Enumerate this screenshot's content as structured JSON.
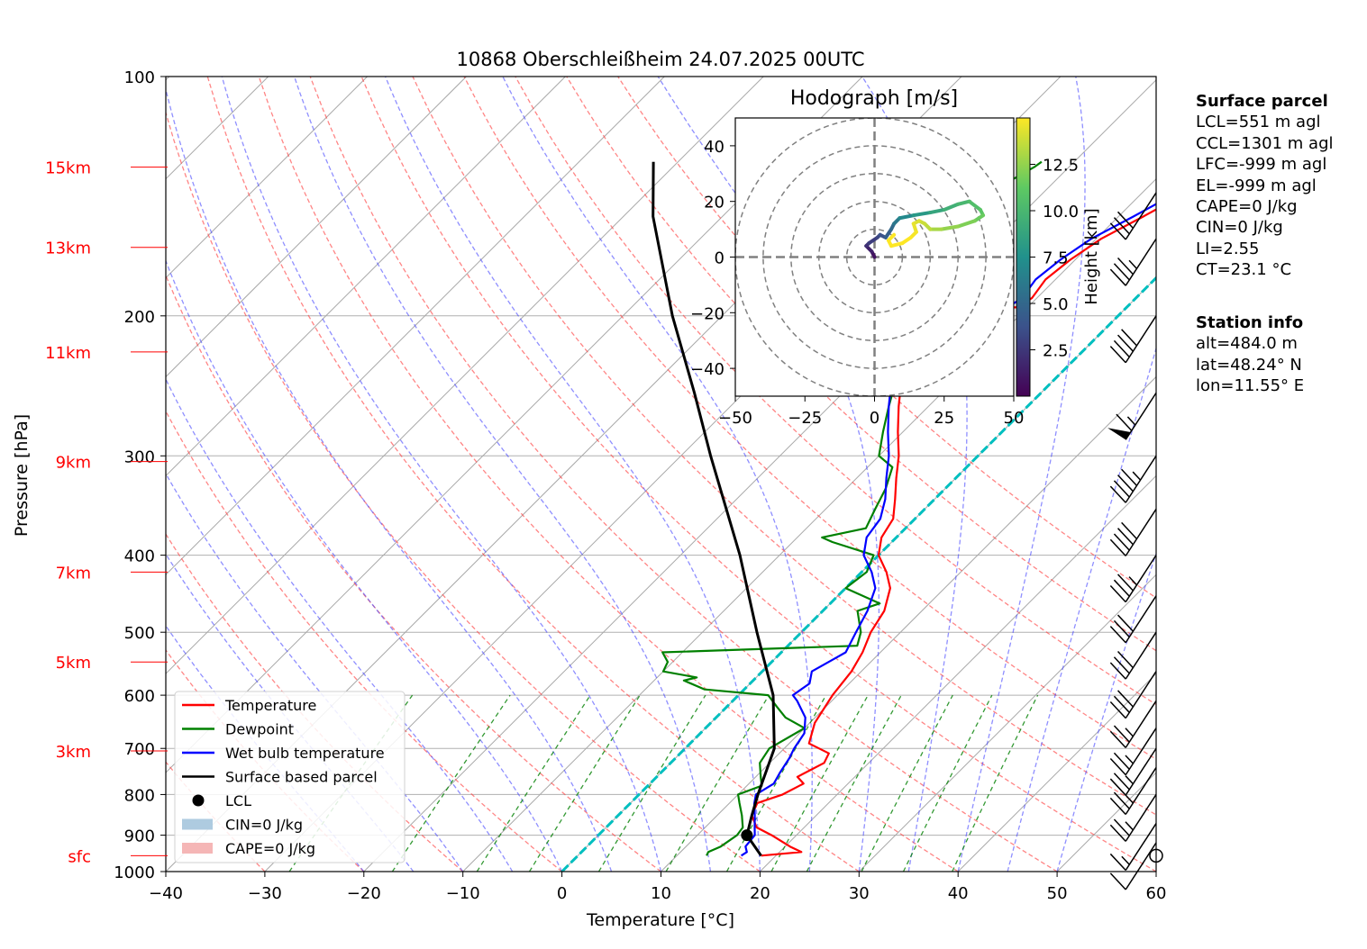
{
  "chart_data": {
    "type": "skew-t log-p sounding",
    "title": "10868 Oberschleißheim 24.07.2025 00UTC",
    "xlabel": "Temperature [°C]",
    "ylabel": "Pressure [hPa]",
    "xlim": [
      -40,
      60
    ],
    "ylim": [
      1000,
      100
    ],
    "y_scale": "log",
    "x_ticks": [
      "−40",
      "−30",
      "−20",
      "−10",
      "0",
      "10",
      "20",
      "30",
      "40",
      "50",
      "60"
    ],
    "y_ticks": [
      {
        "p": 100,
        "label": "100"
      },
      {
        "p": 200,
        "label": "200"
      },
      {
        "p": 300,
        "label": "300"
      },
      {
        "p": 400,
        "label": "400"
      },
      {
        "p": 500,
        "label": "500"
      },
      {
        "p": 600,
        "label": "600"
      },
      {
        "p": 700,
        "label": "700"
      },
      {
        "p": 800,
        "label": "800"
      },
      {
        "p": 900,
        "label": "900"
      },
      {
        "p": 1000,
        "label": "1000"
      }
    ],
    "height_labels": [
      {
        "p": 130,
        "label": "15km"
      },
      {
        "p": 164,
        "label": "13km"
      },
      {
        "p": 222,
        "label": "11km"
      },
      {
        "p": 305,
        "label": "9km"
      },
      {
        "p": 420,
        "label": "7km"
      },
      {
        "p": 545,
        "label": "5km"
      },
      {
        "p": 705,
        "label": "3km"
      },
      {
        "p": 955,
        "label": "sfc"
      }
    ],
    "series": [
      {
        "name": "Temperature",
        "color": "#ff0000",
        "points": [
          [
            955,
            18.5
          ],
          [
            945,
            22.2
          ],
          [
            930,
            20.5
          ],
          [
            900,
            17.5
          ],
          [
            880,
            15.2
          ],
          [
            850,
            13.5
          ],
          [
            820,
            12.8
          ],
          [
            800,
            14.5
          ],
          [
            775,
            15.5
          ],
          [
            760,
            14.2
          ],
          [
            730,
            15.5
          ],
          [
            710,
            15.0
          ],
          [
            690,
            12.0
          ],
          [
            650,
            10.5
          ],
          [
            600,
            9.5
          ],
          [
            560,
            9.0
          ],
          [
            530,
            8.2
          ],
          [
            500,
            7.0
          ],
          [
            470,
            6.2
          ],
          [
            440,
            4.5
          ],
          [
            420,
            2.5
          ],
          [
            400,
            0.0
          ],
          [
            380,
            -1.5
          ],
          [
            360,
            -2.2
          ],
          [
            340,
            -4.0
          ],
          [
            320,
            -6.0
          ],
          [
            300,
            -8.0
          ],
          [
            280,
            -10.5
          ],
          [
            260,
            -13.0
          ],
          [
            240,
            -15.5
          ],
          [
            230,
            -17.0
          ],
          [
            220,
            -18.5
          ],
          [
            210,
            -19.3
          ],
          [
            205,
            -19.0
          ],
          [
            200,
            -17.0
          ],
          [
            197,
            -15.5
          ],
          [
            195,
            -11.0
          ],
          [
            190,
            -10.5
          ],
          [
            180,
            -11.0
          ],
          [
            170,
            -10.5
          ],
          [
            160,
            -9.5
          ],
          [
            150,
            -7.5
          ],
          [
            140,
            -5.5
          ],
          [
            138,
            -3.5
          ],
          [
            135,
            -3.5
          ],
          [
            132,
            -2.5
          ],
          [
            130,
            -2.0
          ],
          [
            128,
            -2.5
          ]
        ]
      },
      {
        "name": "Dewpoint",
        "color": "#008000",
        "points": [
          [
            955,
            13.0
          ],
          [
            945,
            12.8
          ],
          [
            930,
            13.5
          ],
          [
            900,
            14.0
          ],
          [
            880,
            13.8
          ],
          [
            850,
            12.5
          ],
          [
            820,
            11.0
          ],
          [
            800,
            10.0
          ],
          [
            780,
            11.5
          ],
          [
            760,
            10.5
          ],
          [
            730,
            9.0
          ],
          [
            700,
            8.5
          ],
          [
            660,
            10.0
          ],
          [
            640,
            7.0
          ],
          [
            620,
            5.0
          ],
          [
            600,
            3.0
          ],
          [
            590,
            -4.0
          ],
          [
            575,
            -7.0
          ],
          [
            570,
            -6.0
          ],
          [
            560,
            -10.0
          ],
          [
            545,
            -10.5
          ],
          [
            530,
            -12.0
          ],
          [
            520,
            7.0
          ],
          [
            500,
            6.0
          ],
          [
            470,
            3.5
          ],
          [
            460,
            5.0
          ],
          [
            440,
            0.0
          ],
          [
            420,
            0.5
          ],
          [
            400,
            -0.5
          ],
          [
            385,
            -6.0
          ],
          [
            380,
            -7.5
          ],
          [
            370,
            -4.0
          ],
          [
            350,
            -5.0
          ],
          [
            330,
            -6.0
          ],
          [
            310,
            -7.5
          ],
          [
            300,
            -10.0
          ],
          [
            280,
            -12.0
          ],
          [
            260,
            -14.0
          ],
          [
            250,
            -15.0
          ],
          [
            240,
            -15.5
          ],
          [
            230,
            -16.0
          ],
          [
            220,
            -16.0
          ],
          [
            210,
            -17.0
          ],
          [
            202,
            -25.0
          ],
          [
            200,
            -29.0
          ],
          [
            195,
            -31.0
          ],
          [
            185,
            -31.5
          ],
          [
            175,
            -30.5
          ],
          [
            165,
            -29.0
          ],
          [
            155,
            -27.5
          ],
          [
            145,
            -26.5
          ],
          [
            140,
            -25.5
          ],
          [
            135,
            -24.5
          ],
          [
            130,
            -23.5
          ],
          [
            128,
            -23.3
          ]
        ]
      },
      {
        "name": "Wet bulb temperature",
        "color": "#0000ff",
        "points": [
          [
            955,
            16.5
          ],
          [
            945,
            16.7
          ],
          [
            930,
            16.0
          ],
          [
            900,
            15.8
          ],
          [
            880,
            15.0
          ],
          [
            850,
            13.8
          ],
          [
            820,
            12.5
          ],
          [
            800,
            11.8
          ],
          [
            775,
            12.5
          ],
          [
            750,
            12.0
          ],
          [
            720,
            11.5
          ],
          [
            700,
            11.0
          ],
          [
            670,
            10.5
          ],
          [
            640,
            9.0
          ],
          [
            610,
            6.5
          ],
          [
            600,
            5.5
          ],
          [
            580,
            6.0
          ],
          [
            560,
            5.0
          ],
          [
            540,
            6.0
          ],
          [
            530,
            6.5
          ],
          [
            500,
            5.5
          ],
          [
            470,
            4.5
          ],
          [
            440,
            3.0
          ],
          [
            420,
            1.0
          ],
          [
            400,
            -1.5
          ],
          [
            380,
            -3.0
          ],
          [
            360,
            -3.5
          ],
          [
            340,
            -5.0
          ],
          [
            320,
            -7.0
          ],
          [
            300,
            -9.0
          ],
          [
            280,
            -11.5
          ],
          [
            260,
            -14.0
          ],
          [
            240,
            -16.5
          ],
          [
            230,
            -18.0
          ],
          [
            220,
            -19.5
          ],
          [
            210,
            -20.0
          ],
          [
            205,
            -20.0
          ],
          [
            200,
            -17.5
          ],
          [
            197,
            -16.0
          ],
          [
            195,
            -12.0
          ],
          [
            190,
            -11.5
          ],
          [
            180,
            -12.0
          ],
          [
            170,
            -11.5
          ],
          [
            160,
            -10.5
          ],
          [
            150,
            -8.5
          ],
          [
            140,
            -6.5
          ],
          [
            138,
            -4.5
          ],
          [
            135,
            -4.5
          ],
          [
            132,
            -3.5
          ],
          [
            130,
            -3.0
          ],
          [
            128,
            -3.0
          ]
        ]
      },
      {
        "name": "Surface based parcel",
        "color": "#000000",
        "points": [
          [
            955,
            18.5
          ],
          [
            900,
            15.0
          ],
          [
            850,
            13.5
          ],
          [
            800,
            12.0
          ],
          [
            700,
            9.0
          ],
          [
            600,
            3.5
          ],
          [
            500,
            -4.5
          ],
          [
            400,
            -14.0
          ],
          [
            300,
            -27.0
          ],
          [
            250,
            -35.0
          ],
          [
            200,
            -45.0
          ],
          [
            150,
            -57.0
          ],
          [
            128,
            -62.5
          ]
        ]
      }
    ],
    "lcl": {
      "label": "LCL",
      "p": 900,
      "t": 15.0
    },
    "legend": {
      "position": "lower-left",
      "entries": [
        {
          "label": "Temperature",
          "color": "#ff0000",
          "kind": "line"
        },
        {
          "label": "Dewpoint",
          "color": "#008000",
          "kind": "line"
        },
        {
          "label": "Wet bulb temperature",
          "color": "#0000ff",
          "kind": "line"
        },
        {
          "label": "Surface based parcel",
          "color": "#000000",
          "kind": "line"
        },
        {
          "label": "LCL",
          "color": "#000000",
          "kind": "marker"
        },
        {
          "label": "CIN=0 J/kg",
          "color": "#aecbe0",
          "kind": "patch"
        },
        {
          "label": "CAPE=0 J/kg",
          "color": "#f5b6b6",
          "kind": "patch"
        }
      ]
    },
    "reference_lines": {
      "isotherm_zero_color": "#00bfbf",
      "dry_adiabat_color": "#ff4444",
      "moist_adiabat_color": "#4444ff",
      "mixing_ratio_color": "#008000",
      "grid": true
    },
    "wind_barbs": [
      {
        "p": 955,
        "speed_kt": 0
      },
      {
        "p": 920,
        "speed_kt": 10
      },
      {
        "p": 870,
        "speed_kt": 15
      },
      {
        "p": 800,
        "speed_kt": 25
      },
      {
        "p": 740,
        "speed_kt": 25
      },
      {
        "p": 700,
        "speed_kt": 25
      },
      {
        "p": 660,
        "speed_kt": 25
      },
      {
        "p": 610,
        "speed_kt": 25
      },
      {
        "p": 560,
        "speed_kt": 30
      },
      {
        "p": 500,
        "speed_kt": 30
      },
      {
        "p": 450,
        "speed_kt": 30
      },
      {
        "p": 400,
        "speed_kt": 35
      },
      {
        "p": 350,
        "speed_kt": 40
      },
      {
        "p": 300,
        "speed_kt": 45
      },
      {
        "p": 250,
        "speed_kt": 65
      },
      {
        "p": 200,
        "speed_kt": 40
      },
      {
        "p": 160,
        "speed_kt": 35
      },
      {
        "p": 140,
        "speed_kt": 30
      }
    ],
    "hodograph": {
      "title": "Hodograph [m/s]",
      "xlim": [
        -50,
        50
      ],
      "ylim": [
        -50,
        50
      ],
      "x_ticks": [
        "−50",
        "−25",
        "0",
        "25",
        "50"
      ],
      "y_ticks": [
        "−40",
        "−20",
        "0",
        "20",
        "40"
      ],
      "rings": [
        10,
        20,
        30,
        40,
        50
      ],
      "colorbar": {
        "label": "Height [km]",
        "ticks": [
          "2.5",
          "5.0",
          "7.5",
          "10.0",
          "12.5"
        ],
        "range": [
          0,
          15
        ]
      },
      "points": [
        [
          0,
          0,
          0.2
        ],
        [
          -1,
          2,
          0.8
        ],
        [
          -3,
          4,
          1.5
        ],
        [
          -2,
          5,
          2.2
        ],
        [
          1,
          7,
          2.8
        ],
        [
          2,
          8,
          3.2
        ],
        [
          4,
          7,
          3.8
        ],
        [
          6,
          10,
          4.5
        ],
        [
          7,
          12,
          5.2
        ],
        [
          9,
          14,
          6.0
        ],
        [
          14,
          15,
          7.0
        ],
        [
          20,
          16,
          8.0
        ],
        [
          25,
          17,
          8.8
        ],
        [
          30,
          19,
          9.5
        ],
        [
          34,
          20,
          10.0
        ],
        [
          38,
          17,
          10.5
        ],
        [
          39,
          15,
          11.0
        ],
        [
          36,
          13,
          11.5
        ],
        [
          30,
          11,
          12.0
        ],
        [
          24,
          10,
          12.5
        ],
        [
          20,
          10,
          13.0
        ],
        [
          18,
          12,
          13.5
        ],
        [
          16,
          13,
          13.8
        ],
        [
          14,
          12,
          14.2
        ],
        [
          15,
          9,
          14.5
        ],
        [
          13,
          7,
          14.8
        ],
        [
          10,
          5,
          15.0
        ],
        [
          6,
          4,
          15.2
        ],
        [
          5,
          6,
          15.4
        ],
        [
          7,
          8,
          15.5
        ]
      ]
    }
  },
  "info": {
    "surface_header": "Surface parcel",
    "surface_lines": [
      "LCL=551 m agl",
      "CCL=1301 m agl",
      "LFC=-999 m agl",
      "EL=-999 m agl",
      "CAPE=0 J/kg",
      "CIN=0 J/kg",
      "LI=2.55",
      "CT=23.1 °C"
    ],
    "station_header": "Station info",
    "station_lines": [
      "alt=484.0 m",
      "lat=48.24° N",
      "lon=11.55° E"
    ]
  }
}
